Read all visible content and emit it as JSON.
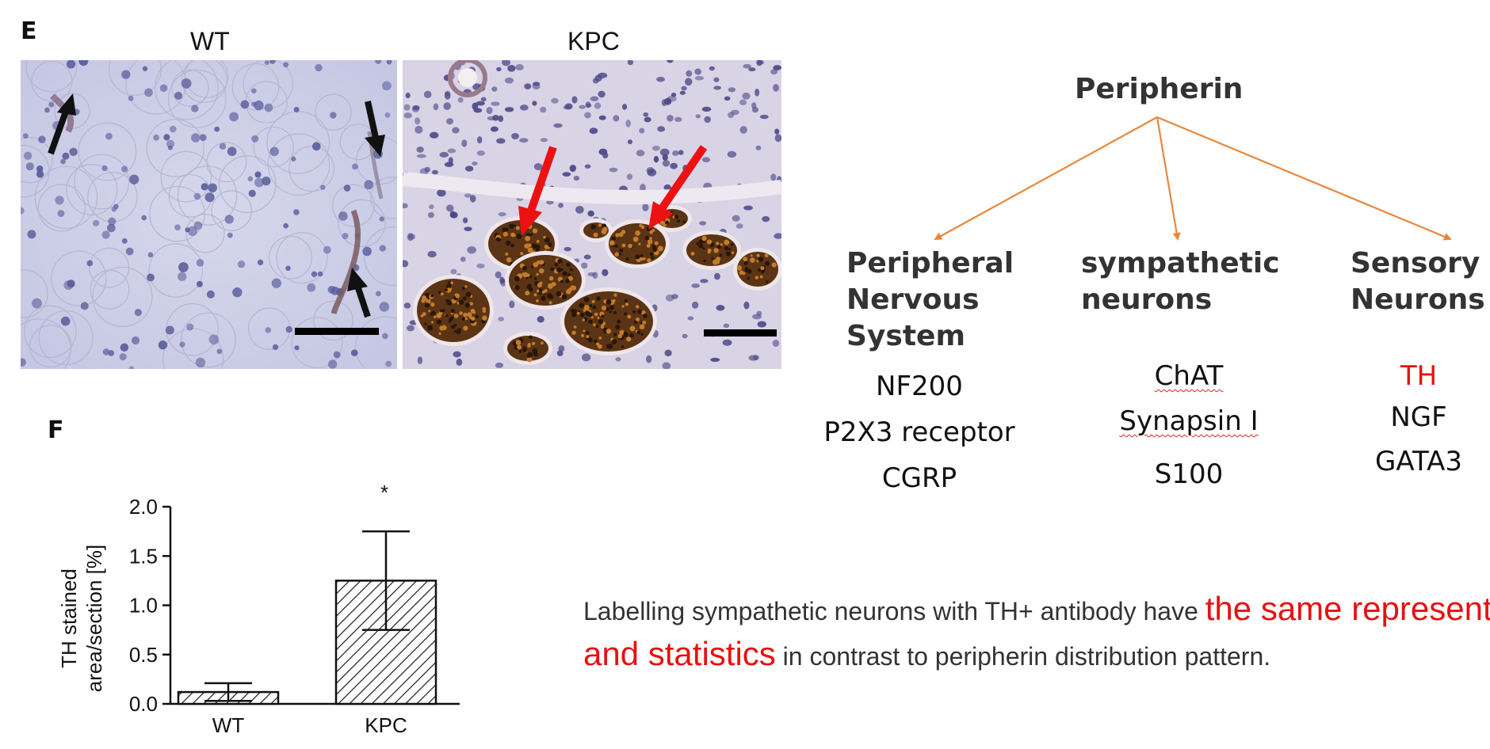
{
  "panel_e": {
    "letter": "E",
    "wt_label": "WT",
    "kpc_label": "KPC"
  },
  "tree": {
    "root": "Peripherin",
    "branch_color": "#e8873a",
    "categories": [
      {
        "lines": [
          "Peripheral",
          "Nervous",
          "System"
        ],
        "markers": [
          "NF200",
          "P2X3 receptor",
          "CGRP"
        ]
      },
      {
        "lines": [
          "sympathetic",
          "neurons"
        ],
        "markers": [
          "ChAT",
          "Synapsin I",
          "S100"
        ]
      },
      {
        "lines": [
          "Sensory",
          "Neurons"
        ],
        "markers": [
          "TH",
          "NGF",
          "GATA3"
        ],
        "highlight_marker": "TH",
        "highlight_color": "#e81010"
      }
    ]
  },
  "panel_f": {
    "letter": "F"
  },
  "chart_data": {
    "type": "bar",
    "categories": [
      "WT",
      "KPC"
    ],
    "values": [
      0.12,
      1.25
    ],
    "error": [
      0.09,
      0.5
    ],
    "ylabel_lines": [
      "TH stained",
      "area/section [%]"
    ],
    "ylim": [
      0,
      2.0
    ],
    "yticks": [
      "0.0",
      "0.5",
      "1.0",
      "1.5",
      "2.0"
    ],
    "significance": [
      "",
      "*"
    ],
    "bar_fill": "hatched",
    "grid": false
  },
  "caption": {
    "part1": "Labelling sympathetic neurons with TH+ antibody have ",
    "highlight": "the same representation and statistics",
    "part2": " in contrast to peripherin distribution pattern.",
    "highlight_color": "#e81010"
  }
}
